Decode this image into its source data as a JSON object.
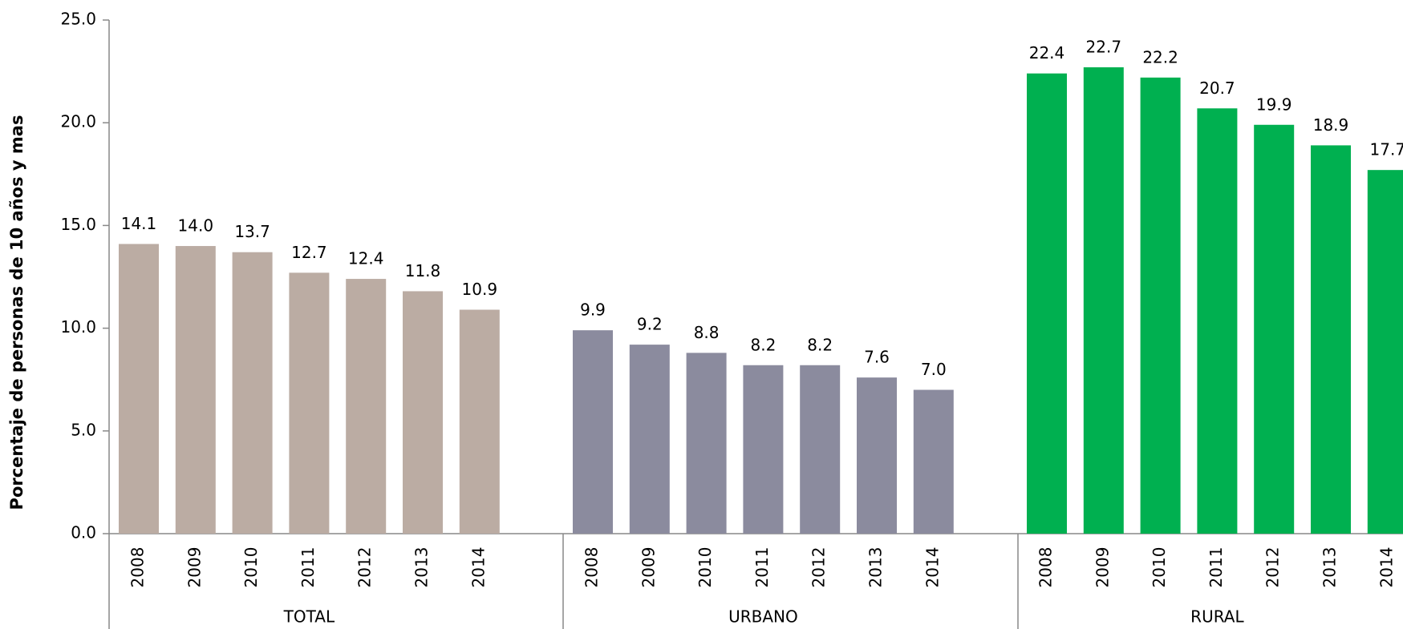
{
  "chart_data": {
    "type": "bar",
    "y_label": "Porcentaje de personas de 10 años y mas",
    "categories": [
      "2008",
      "2009",
      "2010",
      "2011",
      "2012",
      "2013",
      "2014"
    ],
    "series": [
      {
        "name": "TOTAL",
        "color": "#bbaca3",
        "values": [
          14.1,
          14.0,
          13.7,
          12.7,
          12.4,
          11.8,
          10.9
        ],
        "value_labels": [
          "14.1",
          "14.0",
          "13.7",
          "12.7",
          "12.4",
          "11.8",
          "10.9"
        ]
      },
      {
        "name": "URBANO",
        "color": "#8b8b9e",
        "values": [
          9.9,
          9.2,
          8.8,
          8.2,
          8.2,
          7.6,
          7.0
        ],
        "value_labels": [
          "9.9",
          "9.2",
          "8.8",
          "8.2",
          "8.2",
          "7.6",
          "7.0"
        ]
      },
      {
        "name": "RURAL",
        "color": "#00b050",
        "values": [
          22.4,
          22.7,
          22.2,
          20.7,
          19.9,
          18.9,
          17.7
        ],
        "value_labels": [
          "22.4",
          "22.7",
          "22.2",
          "20.7",
          "19.9",
          "18.9",
          "17.7"
        ]
      }
    ],
    "ylim": [
      0,
      25
    ],
    "yticks": [
      {
        "value": 0,
        "label": "0.0"
      },
      {
        "value": 5,
        "label": "5.0"
      },
      {
        "value": 10,
        "label": "10.0"
      },
      {
        "value": 15,
        "label": "15.0"
      },
      {
        "value": 20,
        "label": "20.0"
      },
      {
        "value": 25,
        "label": "25.0"
      }
    ]
  }
}
